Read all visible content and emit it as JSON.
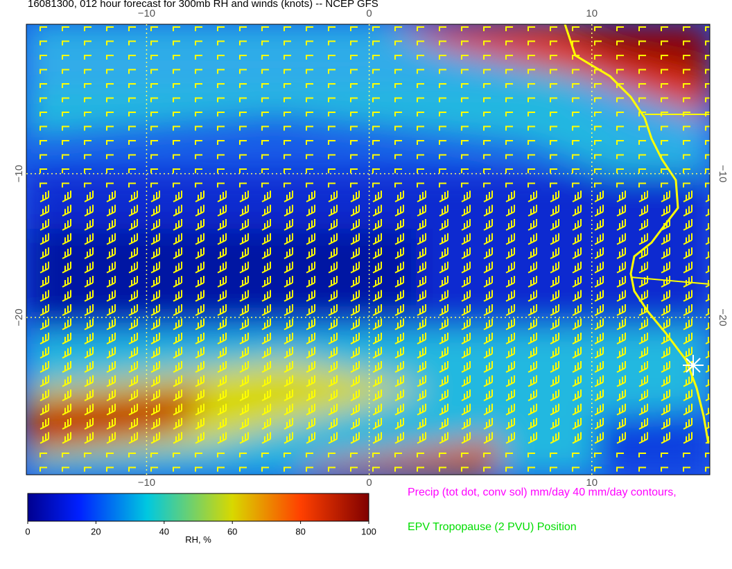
{
  "title": "16081300, 012 hour forecast for 300mb RH and winds (knots) -- NCEP GFS",
  "map": {
    "xlim": [
      -15.4,
      15.3
    ],
    "ylim": [
      0.4,
      -30.95
    ],
    "xticks": [
      {
        "value": -10,
        "label": "−10"
      },
      0,
      10
    ],
    "yticks": [
      {
        "value": -10,
        "label": "−10"
      },
      {
        "value": -20,
        "label": "−20"
      }
    ]
  },
  "colorbar": {
    "label": "RH, %",
    "range": [
      0,
      100
    ],
    "ticks": [
      0,
      20,
      40,
      60,
      80,
      100
    ]
  },
  "legend": {
    "precip": "Precip (tot dot, conv sol) mm/day 40 mm/day contours,",
    "tropopause": "EPV Tropopause (2 PVU) Position"
  }
}
